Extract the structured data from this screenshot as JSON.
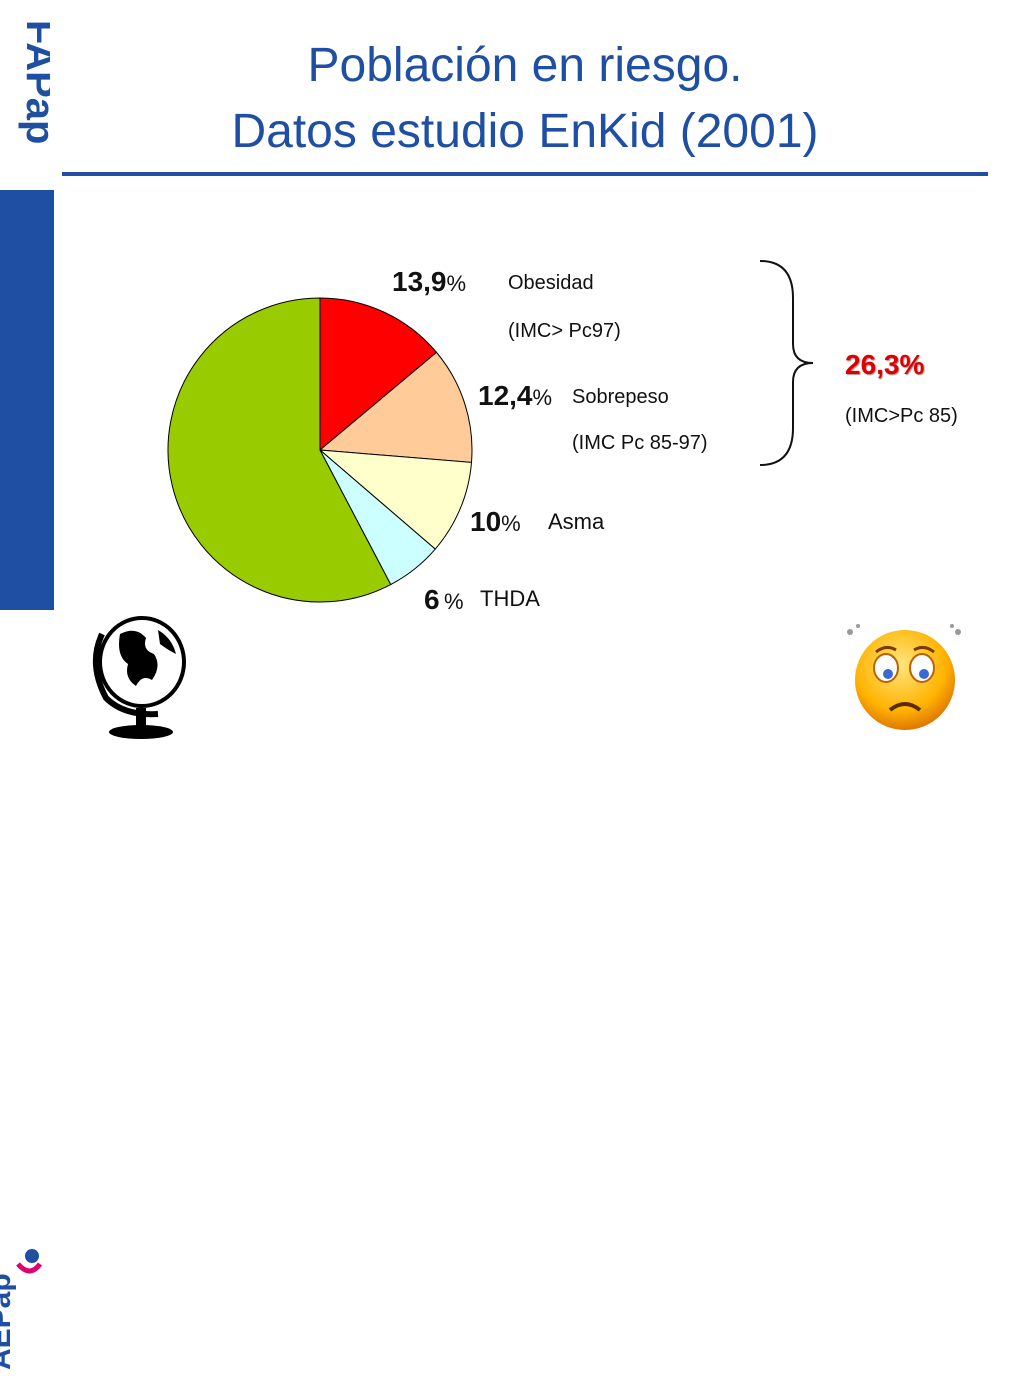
{
  "branding": {
    "top_logo_text": "FAPap",
    "bottom_logo_text": "AEPap"
  },
  "title": {
    "line1": "Población en riesgo.",
    "line2": "Datos estudio EnKid (2001)"
  },
  "chart_data": {
    "type": "pie",
    "slices": [
      {
        "label": "Obesidad",
        "value": 13.9,
        "value_text": "13,9",
        "unit": "%",
        "sublabel": "(IMC> Pc97)",
        "color": "#ff0000"
      },
      {
        "label": "Sobrepeso",
        "value": 12.4,
        "value_text": "12,4",
        "unit": "%",
        "sublabel": "(IMC Pc 85-97)",
        "color": "#ffcc99"
      },
      {
        "label": "Asma",
        "value": 10,
        "value_text": "10",
        "unit": "%",
        "sublabel": "",
        "color": "#ffffcc"
      },
      {
        "label": "THDA",
        "value": 6,
        "value_text": "6",
        "unit": "%",
        "sublabel": "",
        "color": "#ccffff"
      },
      {
        "label": "",
        "value": 57.7,
        "value_text": "",
        "unit": "",
        "sublabel": "",
        "color": "#99cc00"
      }
    ],
    "start_angle_deg": 0,
    "direction": "clockwise"
  },
  "summary": {
    "total": "26,3%",
    "total_note": "(IMC>Pc 85)"
  },
  "decor": {
    "globe": "globe-icon",
    "face": "worried-face-icon"
  }
}
